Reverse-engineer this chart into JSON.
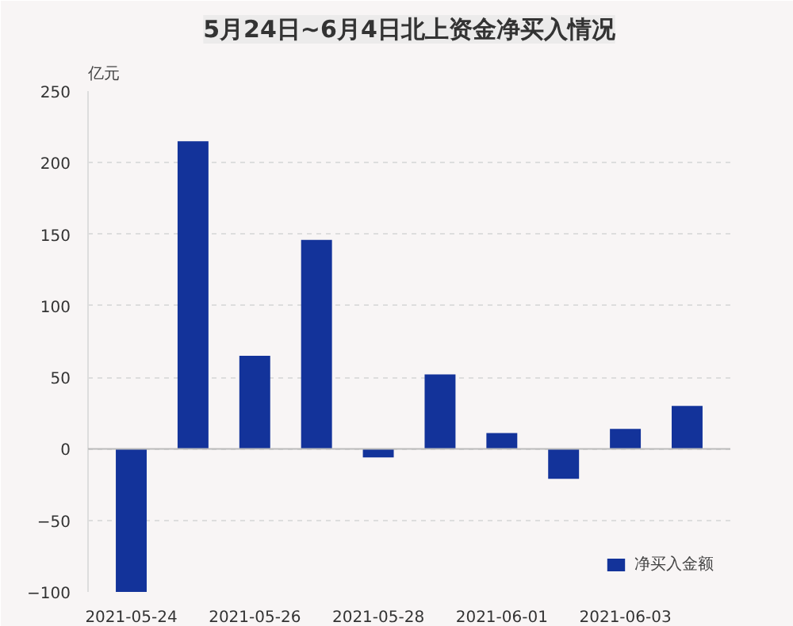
{
  "chart_data": {
    "type": "bar",
    "title": "5月24日~6月4日北上资金净买入情况",
    "ylabel": "亿元",
    "categories": [
      "2021-05-24",
      null,
      "2021-05-26",
      null,
      "2021-05-28",
      null,
      "2021-06-01",
      null,
      "2021-06-03",
      null
    ],
    "series": [
      {
        "name": "净买入金额",
        "color": "#13339a",
        "values": [
          -100,
          215,
          65,
          146,
          -6,
          52,
          11,
          -21,
          14,
          30
        ]
      }
    ],
    "ylim": [
      -100,
      250
    ],
    "yticks": [
      -100,
      -50,
      0,
      50,
      100,
      150,
      200,
      250
    ],
    "grid": "y",
    "legend": "bottom right"
  }
}
